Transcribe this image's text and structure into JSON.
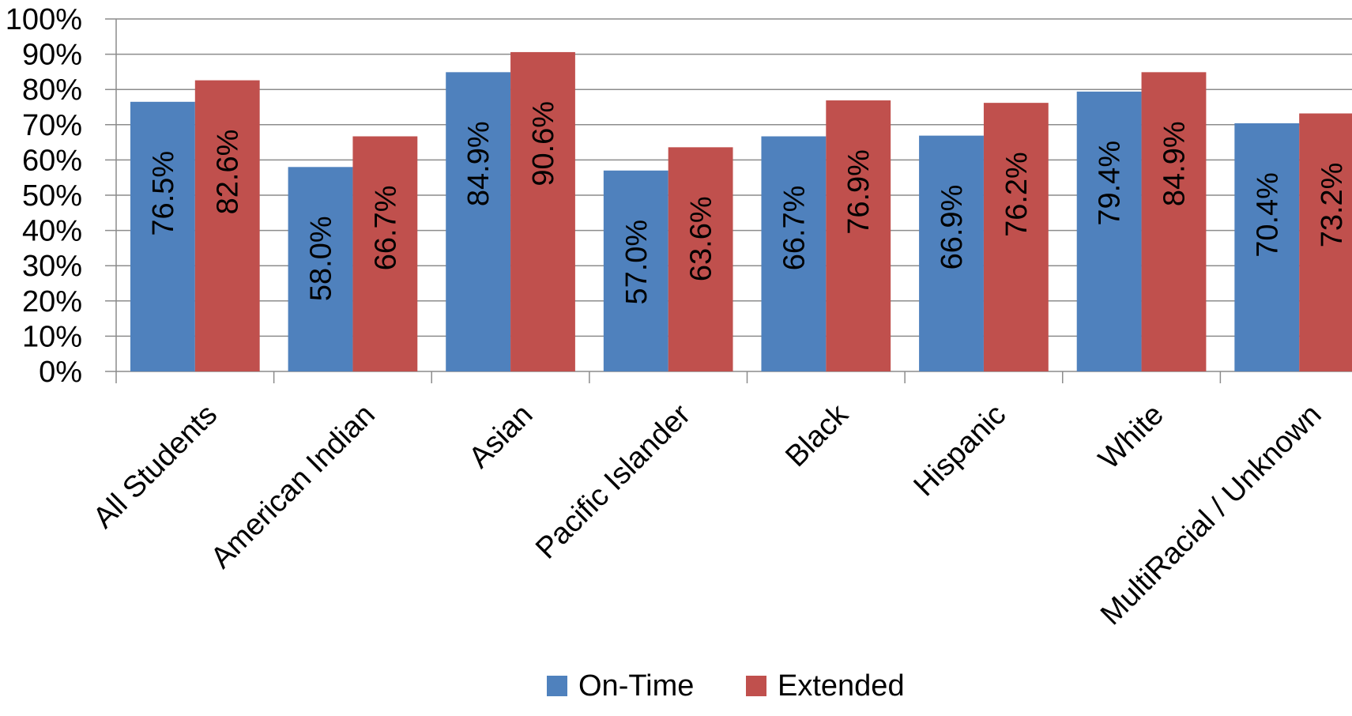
{
  "chart_data": {
    "type": "bar",
    "categories": [
      "All Students",
      "American Indian",
      "Asian",
      "Pacific Islander",
      "Black",
      "Hispanic",
      "White",
      "MultiRacial / Unknown"
    ],
    "series": [
      {
        "name": "On-Time",
        "values": [
          76.5,
          58.0,
          84.9,
          57.0,
          66.7,
          66.9,
          79.4,
          70.4
        ],
        "labels": [
          "76.5%",
          "58.0%",
          "84.9%",
          "57.0%",
          "66.7%",
          "66.9%",
          "79.4%",
          "70.4%"
        ],
        "color": "#4f81bd"
      },
      {
        "name": "Extended",
        "values": [
          82.6,
          66.7,
          90.6,
          63.6,
          76.9,
          76.2,
          84.9,
          73.2
        ],
        "labels": [
          "82.6%",
          "66.7%",
          "90.6%",
          "63.6%",
          "76.9%",
          "76.2%",
          "84.9%",
          "73.2%"
        ],
        "color": "#c0504d"
      }
    ],
    "ylim": [
      0,
      100
    ],
    "yticks": [
      "0%",
      "10%",
      "20%",
      "30%",
      "40%",
      "50%",
      "60%",
      "70%",
      "80%",
      "90%",
      "100%"
    ],
    "grid": true,
    "legend": "bottom"
  }
}
